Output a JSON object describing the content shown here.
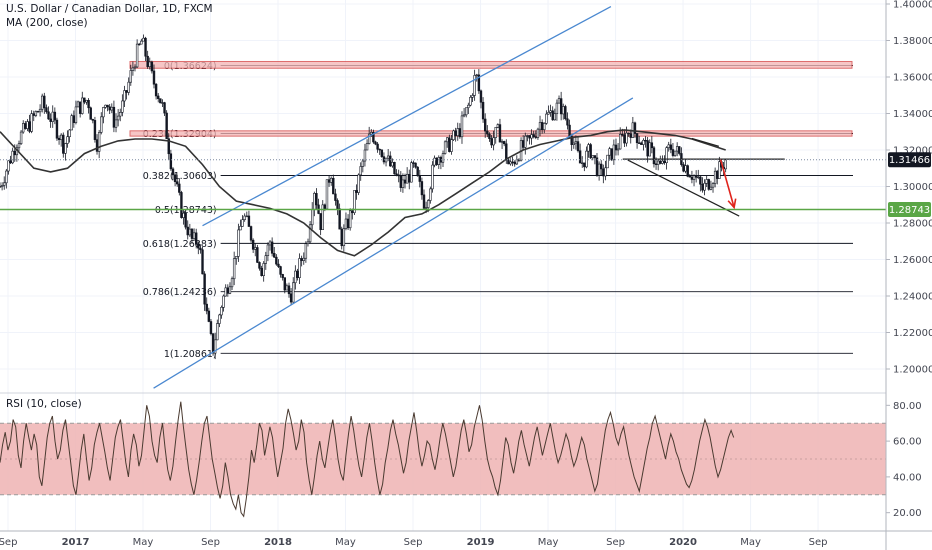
{
  "header": {
    "symbol_line": "U.S. Dollar / Canadian Dollar, 1D, FXCM",
    "ma_label": "MA (200, close)",
    "rsi_label": "RSI (10, close)"
  },
  "colors": {
    "candle": "#131722",
    "ma": "#333333",
    "channel": "#4a88d0",
    "zone_fill": "#f4b4b4",
    "zone_stroke": "#d23c3c",
    "green_line": "#5aa646",
    "arrow": "#e0241c",
    "rsi_band": "#efb3b3",
    "rsi_line": "#4a3a30",
    "price_badge": "#131722",
    "green_badge": "#5aa646",
    "axis_text": "#434651"
  },
  "chart_data": [
    {
      "type": "candlestick",
      "ylim": [
        1.19,
        1.4
      ],
      "yticks": [
        1.2,
        1.22,
        1.24,
        1.26,
        1.28,
        1.3,
        1.32,
        1.34,
        1.36,
        1.38,
        1.4
      ],
      "ytick_labels": [
        "1.20000",
        "1.22000",
        "1.24000",
        "1.26000",
        "1.28000",
        "1.30000",
        "1.32000",
        "1.34000",
        "1.36000",
        "1.38000",
        "1.40000"
      ],
      "xticks": [
        "Sep",
        "2017",
        "May",
        "Sep",
        "2018",
        "May",
        "Sep",
        "2019",
        "May",
        "Sep",
        "2020",
        "May",
        "Sep"
      ],
      "xtick_pos": [
        0,
        4,
        8,
        12,
        16,
        20,
        24,
        28,
        32,
        36,
        40,
        44,
        48
      ],
      "xlim": [
        0,
        52.5
      ],
      "price_path": [
        [
          0,
          1.3
        ],
        [
          1,
          1.325
        ],
        [
          1.8,
          1.335
        ],
        [
          2.5,
          1.345
        ],
        [
          3.2,
          1.335
        ],
        [
          3.8,
          1.322
        ],
        [
          4.5,
          1.342
        ],
        [
          5.2,
          1.348
        ],
        [
          5.8,
          1.322
        ],
        [
          6.2,
          1.35
        ],
        [
          6.8,
          1.335
        ],
        [
          7.3,
          1.345
        ],
        [
          8,
          1.37
        ],
        [
          8.4,
          1.38
        ],
        [
          9,
          1.36
        ],
        [
          9.6,
          1.345
        ],
        [
          10.2,
          1.31
        ],
        [
          10.8,
          1.285
        ],
        [
          11.4,
          1.27
        ],
        [
          11.8,
          1.27
        ],
        [
          12.2,
          1.232
        ],
        [
          12.6,
          1.21
        ],
        [
          13.1,
          1.235
        ],
        [
          13.8,
          1.255
        ],
        [
          14.4,
          1.285
        ],
        [
          15.0,
          1.27
        ],
        [
          15.5,
          1.255
        ],
        [
          16.0,
          1.27
        ],
        [
          16.6,
          1.25
        ],
        [
          17.2,
          1.24
        ],
        [
          17.7,
          1.255
        ],
        [
          18.2,
          1.27
        ],
        [
          18.6,
          1.3
        ],
        [
          19.0,
          1.28
        ],
        [
          19.6,
          1.31
        ],
        [
          20.2,
          1.27
        ],
        [
          20.8,
          1.285
        ],
        [
          21.4,
          1.31
        ],
        [
          22.0,
          1.33
        ],
        [
          22.6,
          1.32
        ],
        [
          23.2,
          1.31
        ],
        [
          23.8,
          1.3
        ],
        [
          24.5,
          1.31
        ],
        [
          25.2,
          1.29
        ],
        [
          25.8,
          1.315
        ],
        [
          26.5,
          1.322
        ],
        [
          27.2,
          1.33
        ],
        [
          27.8,
          1.345
        ],
        [
          28.2,
          1.362
        ],
        [
          28.6,
          1.34
        ],
        [
          29.0,
          1.325
        ],
        [
          29.6,
          1.33
        ],
        [
          30.2,
          1.31
        ],
        [
          30.8,
          1.32
        ],
        [
          31.4,
          1.325
        ],
        [
          32.0,
          1.335
        ],
        [
          32.6,
          1.34
        ],
        [
          33.2,
          1.345
        ],
        [
          33.8,
          1.33
        ],
        [
          34.4,
          1.312
        ],
        [
          35.0,
          1.32
        ],
        [
          35.6,
          1.305
        ],
        [
          36.2,
          1.318
        ],
        [
          36.8,
          1.325
        ],
        [
          37.4,
          1.332
        ],
        [
          38.0,
          1.325
        ],
        [
          38.6,
          1.318
        ],
        [
          39.2,
          1.31
        ],
        [
          39.7,
          1.322
        ],
        [
          40.2,
          1.318
        ],
        [
          40.7,
          1.31
        ],
        [
          41.2,
          1.305
        ],
        [
          41.6,
          1.298
        ],
        [
          42.2,
          1.305
        ],
        [
          42.7,
          1.31
        ],
        [
          43.0,
          1.3147
        ]
      ],
      "ma200_path": [
        [
          0,
          1.33
        ],
        [
          1,
          1.32
        ],
        [
          2,
          1.31
        ],
        [
          3,
          1.308
        ],
        [
          4,
          1.31
        ],
        [
          5,
          1.318
        ],
        [
          6,
          1.322
        ],
        [
          7,
          1.325
        ],
        [
          8,
          1.326
        ],
        [
          9,
          1.326
        ],
        [
          10,
          1.325
        ],
        [
          11,
          1.322
        ],
        [
          12,
          1.312
        ],
        [
          13,
          1.3
        ],
        [
          14,
          1.292
        ],
        [
          15,
          1.29
        ],
        [
          16,
          1.288
        ],
        [
          17,
          1.285
        ],
        [
          18,
          1.28
        ],
        [
          19,
          1.272
        ],
        [
          20,
          1.265
        ],
        [
          21,
          1.262
        ],
        [
          22,
          1.268
        ],
        [
          23,
          1.275
        ],
        [
          24,
          1.283
        ],
        [
          25,
          1.285
        ],
        [
          26,
          1.29
        ],
        [
          27,
          1.296
        ],
        [
          28,
          1.302
        ],
        [
          29,
          1.308
        ],
        [
          30,
          1.315
        ],
        [
          31,
          1.32
        ],
        [
          32,
          1.323
        ],
        [
          33,
          1.325
        ],
        [
          34,
          1.327
        ],
        [
          35,
          1.328
        ],
        [
          36,
          1.33
        ],
        [
          37,
          1.331
        ],
        [
          38,
          1.33
        ],
        [
          39,
          1.329
        ],
        [
          40,
          1.328
        ],
        [
          41,
          1.326
        ],
        [
          42,
          1.323
        ],
        [
          43,
          1.32
        ]
      ],
      "fibonacci": [
        {
          "label": "0(1.36624)",
          "value": 1.36624
        },
        {
          "label": "0.236(1.32904)",
          "value": 1.32904
        },
        {
          "label": "0.382(1.30603)",
          "value": 1.30603
        },
        {
          "label": "0.5(1.28743)",
          "value": 1.28743
        },
        {
          "label": "0.618(1.26883)",
          "value": 1.26883
        },
        {
          "label": "0.786(1.24236)",
          "value": 1.24236
        },
        {
          "label": "1(1.20861)",
          "value": 1.20861
        }
      ],
      "zones": [
        {
          "from": 1.3648,
          "to": 1.3685
        },
        {
          "from": 1.3276,
          "to": 1.3305
        }
      ],
      "channel": [
        {
          "x1": 12.0,
          "y1": 1.2785,
          "x2": 36.2,
          "y2": 1.3986
        },
        {
          "x1": 9.1,
          "y1": 1.1895,
          "x2": 37.5,
          "y2": 1.3485
        }
      ],
      "drawn_lines": [
        {
          "x1": 36.9,
          "y1": 1.315,
          "x2": 46.5,
          "y2": 1.315,
          "style": "dark"
        },
        {
          "x1": 37.2,
          "y1": 1.3145,
          "x2": 43.8,
          "y2": 1.2838,
          "style": "dark"
        },
        {
          "x1": 41.0,
          "y1": 1.3263,
          "x2": 42.6,
          "y2": 1.322,
          "style": "dark"
        }
      ],
      "arrow": {
        "x1": 42.7,
        "y1": 1.3147,
        "x2": 43.5,
        "y2": 1.2885
      },
      "green_level": 1.28743,
      "last_price": "1.31466",
      "green_price": "1.28743"
    },
    {
      "type": "line",
      "name": "RSI (10, close)",
      "ylim": [
        12,
        88
      ],
      "yticks": [
        20,
        40,
        60,
        80
      ],
      "ytick_labels": [
        "20.00",
        "40.00",
        "60.00",
        "80.00"
      ],
      "band": [
        30,
        70
      ],
      "values": [
        48,
        58,
        65,
        55,
        60,
        72,
        68,
        52,
        45,
        60,
        70,
        62,
        55,
        64,
        58,
        40,
        35,
        48,
        62,
        70,
        74,
        60,
        50,
        55,
        66,
        72,
        60,
        48,
        35,
        30,
        42,
        55,
        64,
        50,
        38,
        45,
        58,
        65,
        70,
        62,
        54,
        45,
        38,
        50,
        62,
        68,
        72,
        60,
        48,
        40,
        55,
        64,
        58,
        46,
        52,
        66,
        80,
        74,
        60,
        52,
        48,
        62,
        70,
        56,
        44,
        38,
        46,
        60,
        72,
        82,
        68,
        56,
        44,
        36,
        30,
        38,
        48,
        60,
        70,
        74,
        62,
        50,
        42,
        34,
        28,
        35,
        48,
        40,
        30,
        25,
        22,
        30,
        20,
        18,
        28,
        40,
        55,
        48,
        58,
        70,
        66,
        52,
        60,
        68,
        62,
        50,
        40,
        48,
        56,
        70,
        78,
        72,
        64,
        55,
        60,
        72,
        65,
        48,
        38,
        30,
        40,
        52,
        60,
        50,
        45,
        55,
        65,
        72,
        62,
        50,
        42,
        38,
        52,
        64,
        74,
        66,
        55,
        46,
        40,
        50,
        62,
        70,
        60,
        48,
        38,
        30,
        36,
        48,
        56,
        66,
        72,
        64,
        58,
        50,
        42,
        48,
        60,
        68,
        76,
        66,
        54,
        46,
        52,
        60,
        58,
        50,
        44,
        52,
        62,
        70,
        64,
        56,
        48,
        40,
        46,
        56,
        66,
        72,
        64,
        54,
        58,
        68,
        74,
        80,
        72,
        60,
        50,
        44,
        40,
        34,
        30,
        38,
        50,
        62,
        58,
        48,
        42,
        50,
        60,
        66,
        58,
        52,
        46,
        54,
        62,
        68,
        60,
        52,
        58,
        64,
        70,
        62,
        54,
        48,
        52,
        58,
        64,
        60,
        52,
        46,
        50,
        56,
        62,
        58,
        50,
        44,
        38,
        32,
        36,
        46,
        56,
        66,
        72,
        76,
        70,
        62,
        58,
        64,
        68,
        60,
        52,
        46,
        40,
        36,
        32,
        40,
        48,
        56,
        62,
        70,
        74,
        68,
        62,
        56,
        50,
        58,
        64,
        60,
        54,
        50,
        44,
        40,
        36,
        34,
        38,
        44,
        52,
        60,
        66,
        72,
        68,
        62,
        54,
        46,
        40,
        44,
        50,
        56,
        62,
        66,
        62
      ]
    }
  ]
}
